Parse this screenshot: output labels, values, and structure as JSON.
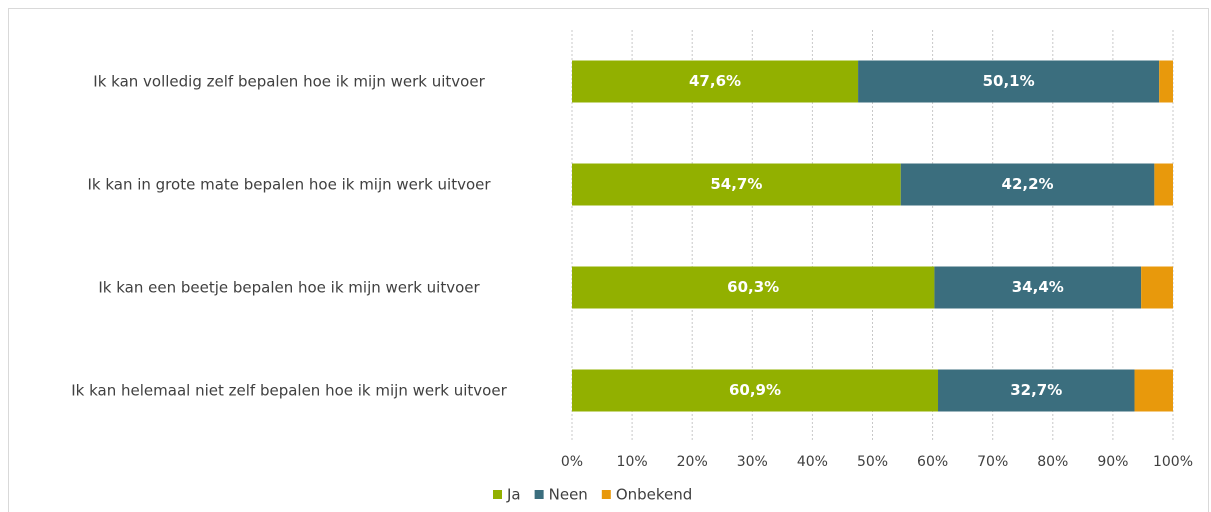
{
  "chart_data": {
    "type": "stacked-barh",
    "categories": [
      "Ik kan volledig zelf bepalen hoe ik mijn werk uitvoer",
      "Ik kan in grote mate bepalen hoe ik mijn werk uitvoer",
      "Ik kan een beetje bepalen hoe ik mijn werk uitvoer",
      "Ik kan helemaal niet zelf bepalen hoe ik mijn werk uitvoer"
    ],
    "series": [
      {
        "name": "Ja",
        "color": "#92b000",
        "values": [
          47.6,
          54.7,
          60.3,
          60.9
        ],
        "value_labels": [
          "47,6%",
          "54,7%",
          "60,3%",
          "60,9%"
        ]
      },
      {
        "name": "Neen",
        "color": "#3b6e7e",
        "values": [
          50.1,
          42.2,
          34.4,
          32.7
        ],
        "value_labels": [
          "50,1%",
          "42,2%",
          "34,4%",
          "32,7%"
        ]
      },
      {
        "name": "Onbekend",
        "color": "#e8990c",
        "values": [
          2.3,
          3.1,
          5.3,
          6.4
        ]
      }
    ],
    "xlim": [
      0,
      100
    ],
    "xticks": [
      {
        "value": 0,
        "label": "0%"
      },
      {
        "value": 10,
        "label": "10%"
      },
      {
        "value": 20,
        "label": "20%"
      },
      {
        "value": 30,
        "label": "30%"
      },
      {
        "value": 40,
        "label": "40%"
      },
      {
        "value": 50,
        "label": "50%"
      },
      {
        "value": 60,
        "label": "60%"
      },
      {
        "value": 70,
        "label": "70%"
      },
      {
        "value": 80,
        "label": "80%"
      },
      {
        "value": 90,
        "label": "90%"
      },
      {
        "value": 100,
        "label": "100%"
      }
    ],
    "grid": true,
    "legend": "bottom"
  }
}
